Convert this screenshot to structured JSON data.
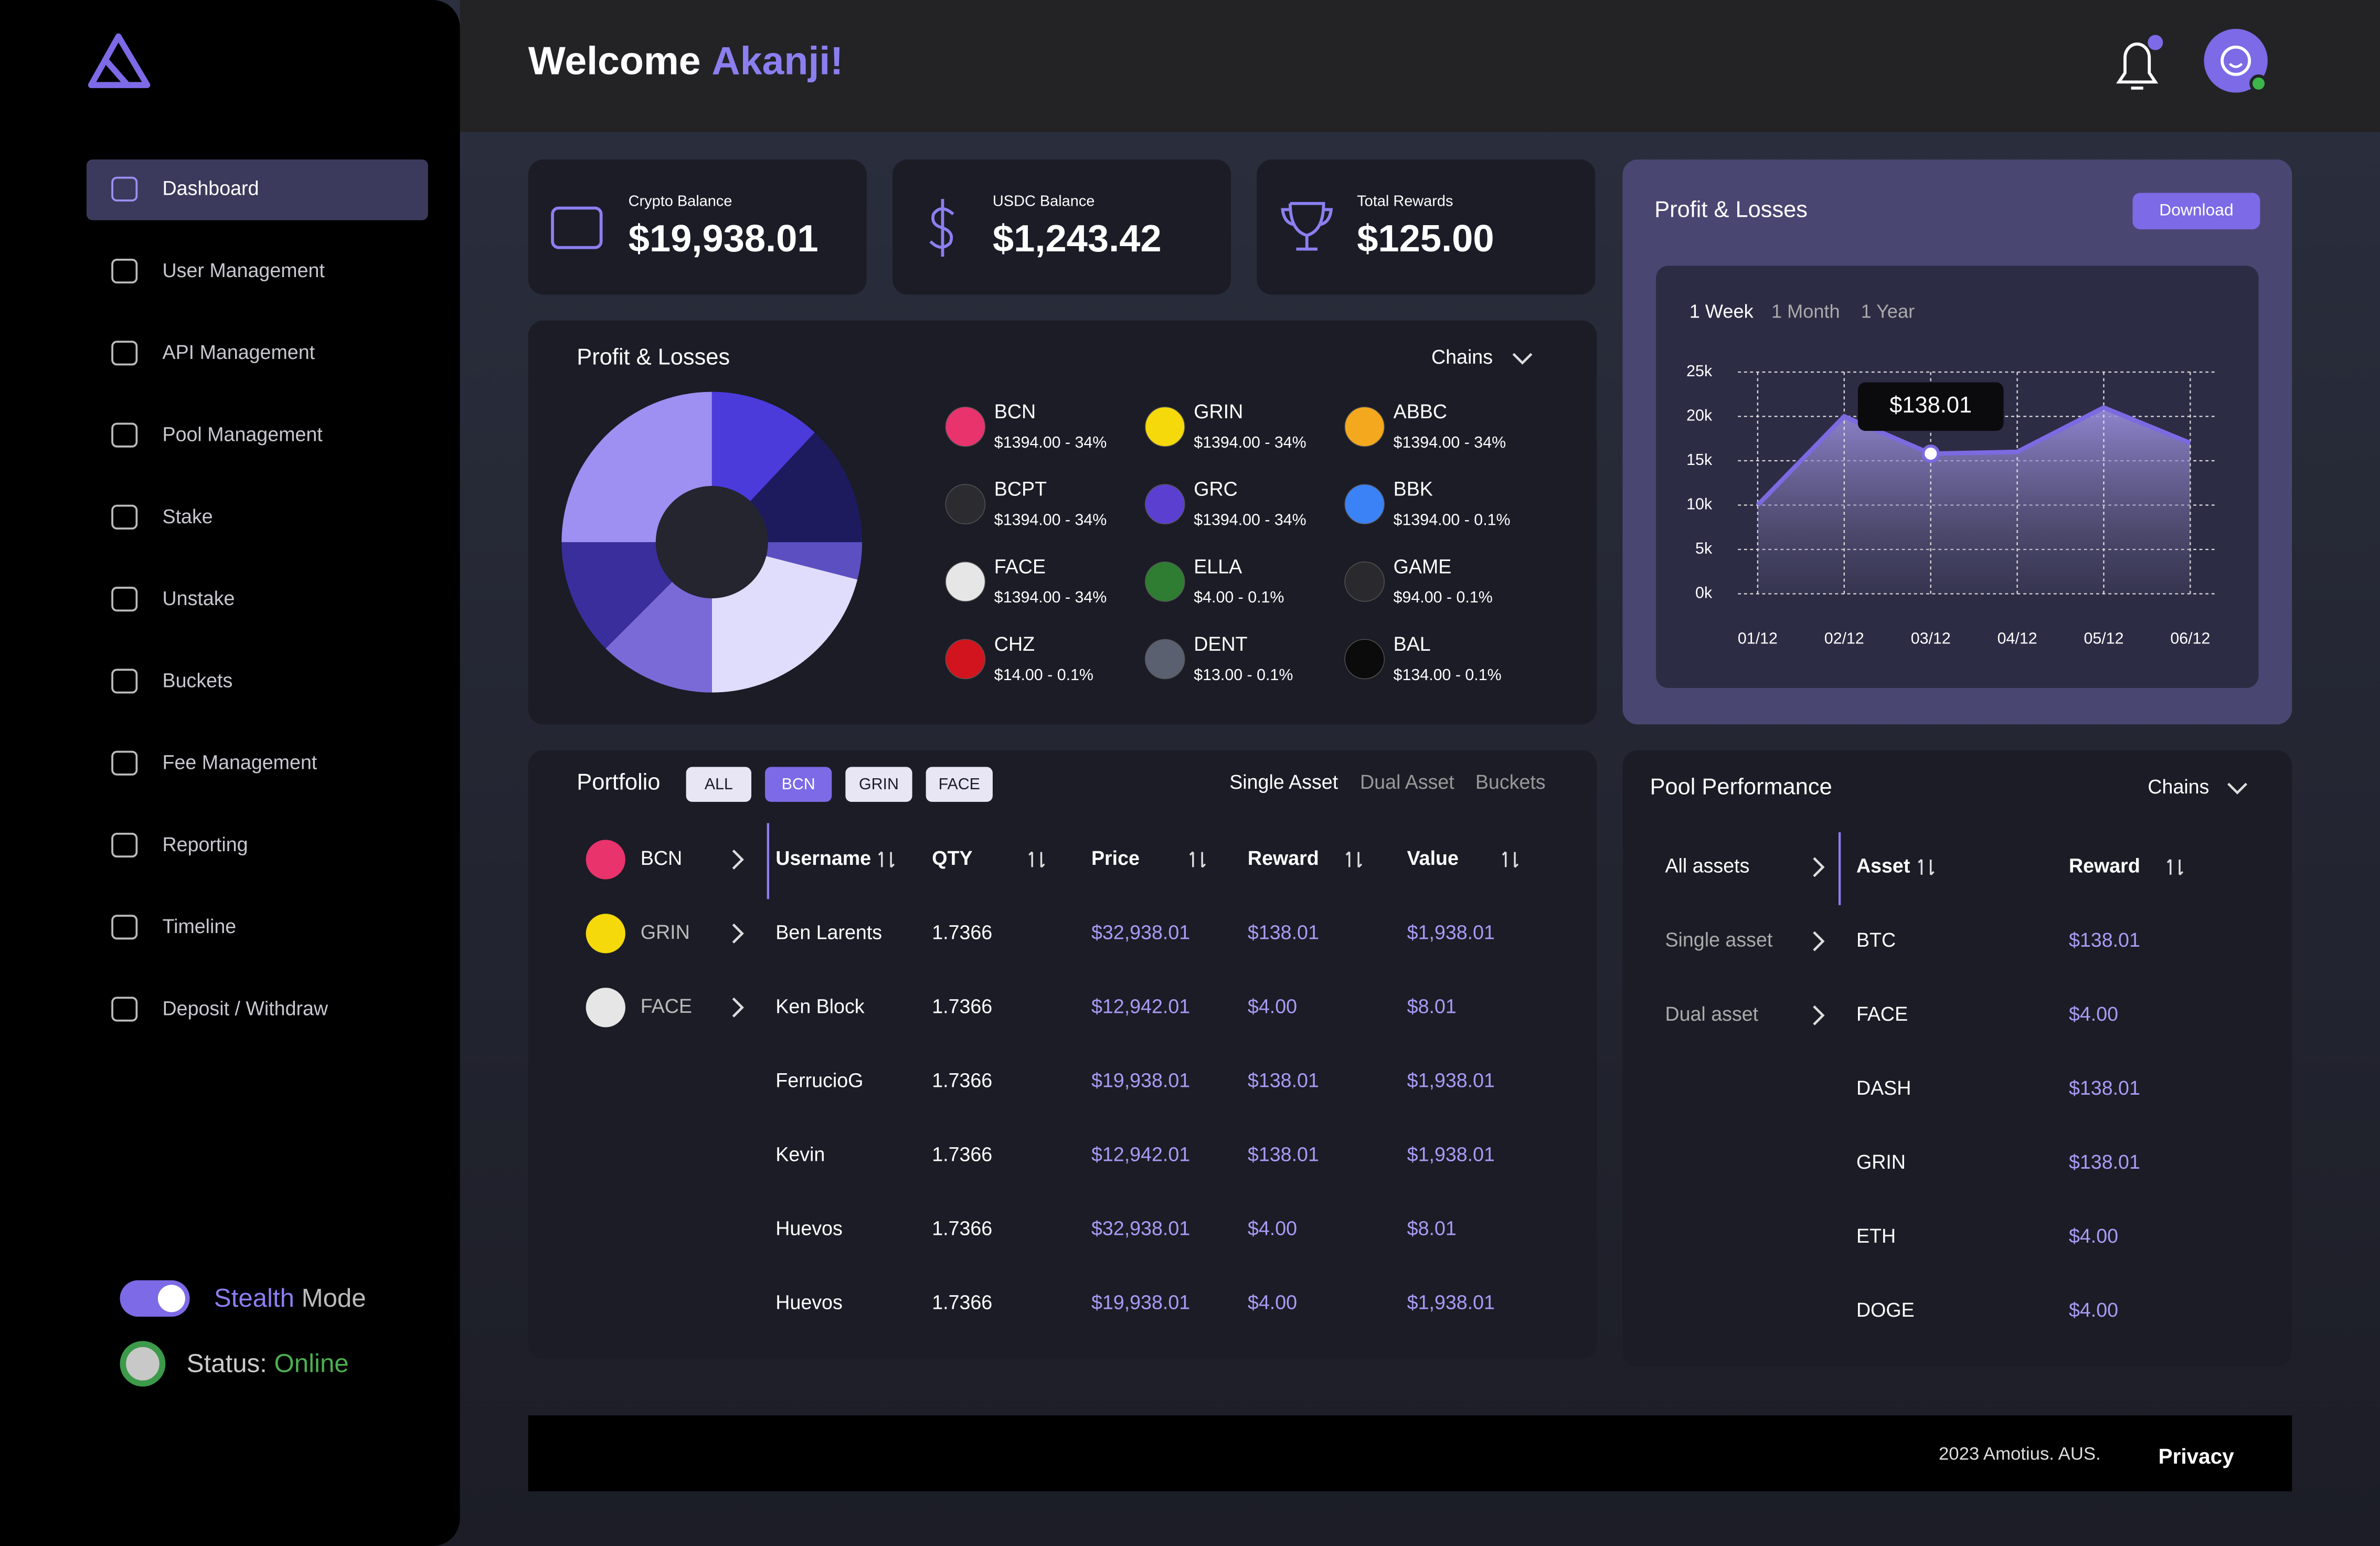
{
  "sidebar": {
    "nav": [
      "Dashboard",
      "User Management",
      "API Management",
      "Pool Management",
      "Stake",
      "Unstake",
      "Buckets",
      "Fee Management",
      "Reporting",
      "Timeline",
      "Deposit / Withdraw"
    ],
    "stealth": [
      "Stealth",
      "Mode"
    ],
    "status": [
      "Status:",
      "Online"
    ]
  },
  "header": {
    "greeting": "Welcome",
    "name": "Akanji!"
  },
  "balances": [
    {
      "label": "Crypto Balance",
      "value": "$19,938.01"
    },
    {
      "label": "USDC Balance",
      "value": "$1,243.42"
    },
    {
      "label": "Total Rewards",
      "value": "$125.00"
    }
  ],
  "chains_panel": {
    "title": "Profit & Losses",
    "dropdown": "Chains",
    "coins": [
      {
        "name": "BCN",
        "detail": "$1394.00 - 34%",
        "color": "#e8336d"
      },
      {
        "name": "GRIN",
        "detail": "$1394.00 - 34%",
        "color": "#f5d90a"
      },
      {
        "name": "ABBC",
        "detail": "$1394.00 - 34%",
        "color": "#f4a81d"
      },
      {
        "name": "BCPT",
        "detail": "$1394.00 - 34%",
        "color": "#2b2b30"
      },
      {
        "name": "GRC",
        "detail": "$1394.00 - 34%",
        "color": "#5b3fd0"
      },
      {
        "name": "BBK",
        "detail": "$1394.00 - 0.1%",
        "color": "#3b82f6"
      },
      {
        "name": "FACE",
        "detail": "$1394.00 - 34%",
        "color": "#e6e6e6"
      },
      {
        "name": "ELLA",
        "detail": "$4.00 - 0.1%",
        "color": "#2e7d32"
      },
      {
        "name": "GAME",
        "detail": "$94.00 - 0.1%",
        "color": "#2a2a2e"
      },
      {
        "name": "CHZ",
        "detail": "$14.00 - 0.1%",
        "color": "#d1141d"
      },
      {
        "name": "DENT",
        "detail": "$13.00 - 0.1%",
        "color": "#5b6070"
      },
      {
        "name": "BAL",
        "detail": "$134.00 - 0.1%",
        "color": "#0b0b0b"
      }
    ]
  },
  "rewards_panel": {
    "title": "Profit & Losses",
    "button": "Download",
    "tabs": [
      "1 Week",
      "1 Month",
      "1 Year"
    ]
  },
  "chart_data": [
    {
      "type": "pie",
      "values": [
        12,
        13,
        4,
        21,
        12.5,
        12.5,
        25
      ],
      "colors": [
        "#4b3bdb",
        "#1e1a5e",
        "#5c4fc2",
        "#e0dcfb",
        "#7a6ad8",
        "#3a2e9c",
        "#9d90f2"
      ]
    },
    {
      "type": "area",
      "categories": [
        "01/12",
        "02/12",
        "03/12",
        "04/12",
        "05/12",
        "06/12"
      ],
      "series": [
        {
          "values": [
            10000,
            20000,
            15800,
            16000,
            21000,
            17000
          ],
          "color": "#7b6ae0"
        }
      ],
      "ylim": [
        0,
        25000
      ],
      "yticks": [
        {
          "value": 0,
          "label": "0k"
        },
        {
          "value": 5000,
          "label": "5k"
        },
        {
          "value": 10000,
          "label": "10k"
        },
        {
          "value": 15000,
          "label": "15k"
        },
        {
          "value": 20000,
          "label": "20k"
        },
        {
          "value": 25000,
          "label": "25k"
        }
      ],
      "grid": true,
      "annotation": "$138.01"
    }
  ],
  "portfolio": {
    "title": "Portfolio",
    "filters": [
      "ALL",
      "BCN",
      "GRIN",
      "FACE"
    ],
    "views": [
      "Single Asset",
      "Dual Asset",
      "Buckets"
    ],
    "assets": [
      {
        "name": "BCN",
        "color": "#e8336d"
      },
      {
        "name": "GRIN",
        "color": "#f5d90a"
      },
      {
        "name": "FACE",
        "color": "#e6e6e6"
      }
    ],
    "columns": [
      "Username",
      "QTY",
      "Price",
      "Reward",
      "Value"
    ],
    "rows": [
      [
        "Ben Larents",
        "1.7366",
        "$32,938.01",
        "$138.01",
        "$1,938.01"
      ],
      [
        "Ken Block",
        "1.7366",
        "$12,942.01",
        "$4.00",
        "$8.01"
      ],
      [
        "FerrucioG",
        "1.7366",
        "$19,938.01",
        "$138.01",
        "$1,938.01"
      ],
      [
        "Kevin",
        "1.7366",
        "$12,942.01",
        "$138.01",
        "$1,938.01"
      ],
      [
        "Huevos",
        "1.7366",
        "$32,938.01",
        "$4.00",
        "$8.01"
      ],
      [
        "Huevos",
        "1.7366",
        "$19,938.01",
        "$4.00",
        "$1,938.01"
      ]
    ]
  },
  "pool": {
    "title": "Pool Performance",
    "dropdown": "Chains",
    "groups": [
      "All assets",
      "Single asset",
      "Dual asset"
    ],
    "columns": [
      "Asset",
      "Reward"
    ],
    "rows": [
      [
        "BTC",
        "$138.01"
      ],
      [
        "FACE",
        "$4.00"
      ],
      [
        "DASH",
        "$138.01"
      ],
      [
        "GRIN",
        "$138.01"
      ],
      [
        "ETH",
        "$4.00"
      ],
      [
        "DOGE",
        "$4.00"
      ]
    ]
  },
  "footer": {
    "copyright": "2023 Amotius. AUS.",
    "privacy": "Privacy"
  }
}
